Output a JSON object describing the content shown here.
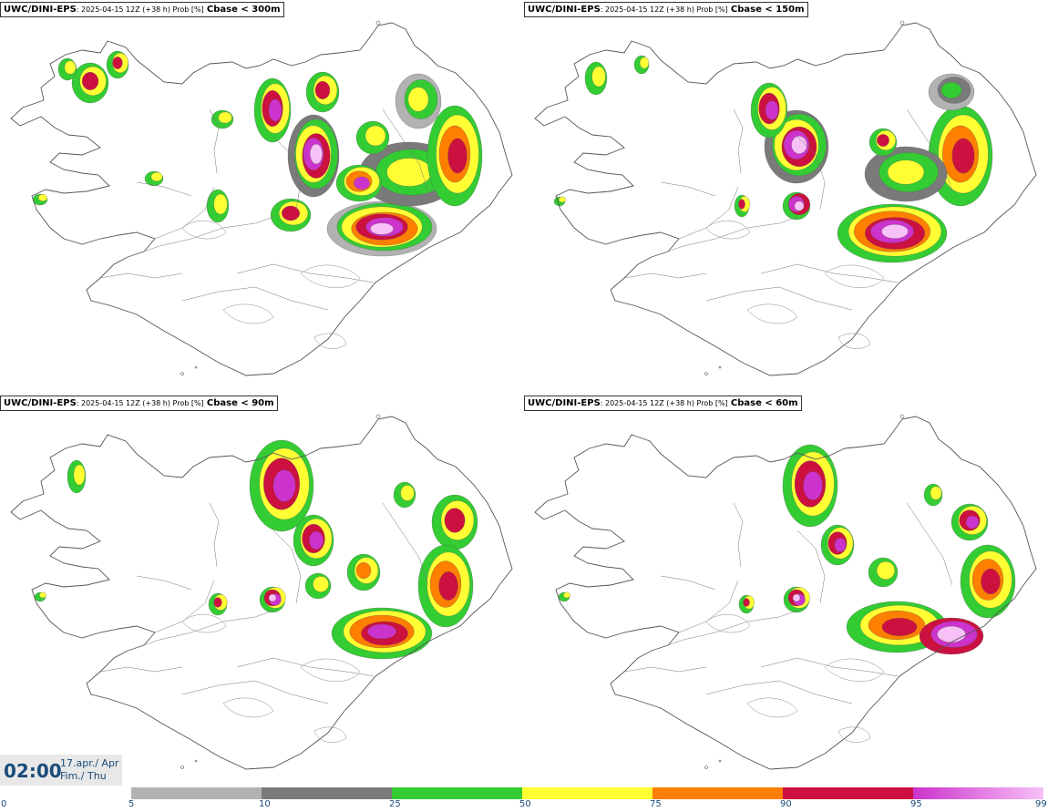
{
  "panels": [
    {
      "source": "UWC/DINI-EPS",
      "meta": ": 2025-04-15 12Z (+38 h) Prob [%]",
      "param": "Cbase < 300m"
    },
    {
      "source": "UWC/DINI-EPS",
      "meta": ": 2025-04-15 12Z (+38 h) Prob [%]",
      "param": "Cbase < 150m"
    },
    {
      "source": "UWC/DINI-EPS",
      "meta": ": 2025-04-15 12Z (+38 h) Prob [%]",
      "param": "Cbase < 90m"
    },
    {
      "source": "UWC/DINI-EPS",
      "meta": ": 2025-04-15 12Z (+38 h) Prob [%]",
      "param": "Cbase < 60m"
    }
  ],
  "time": {
    "clock": "02:00",
    "date_line1": "17.apr./ Apr",
    "date_line2": "Fim./ Thu"
  },
  "colorbar": {
    "ticks": [
      "0",
      "5",
      "10",
      "25",
      "50",
      "75",
      "90",
      "95",
      "99"
    ],
    "colors": [
      "#ffffff",
      "#b2b2b2",
      "#7a7a7a",
      "#33cc33",
      "#ffff33",
      "#ff7f00",
      "#cc1040",
      "#cc33cc",
      "#f7c0f7"
    ]
  }
}
